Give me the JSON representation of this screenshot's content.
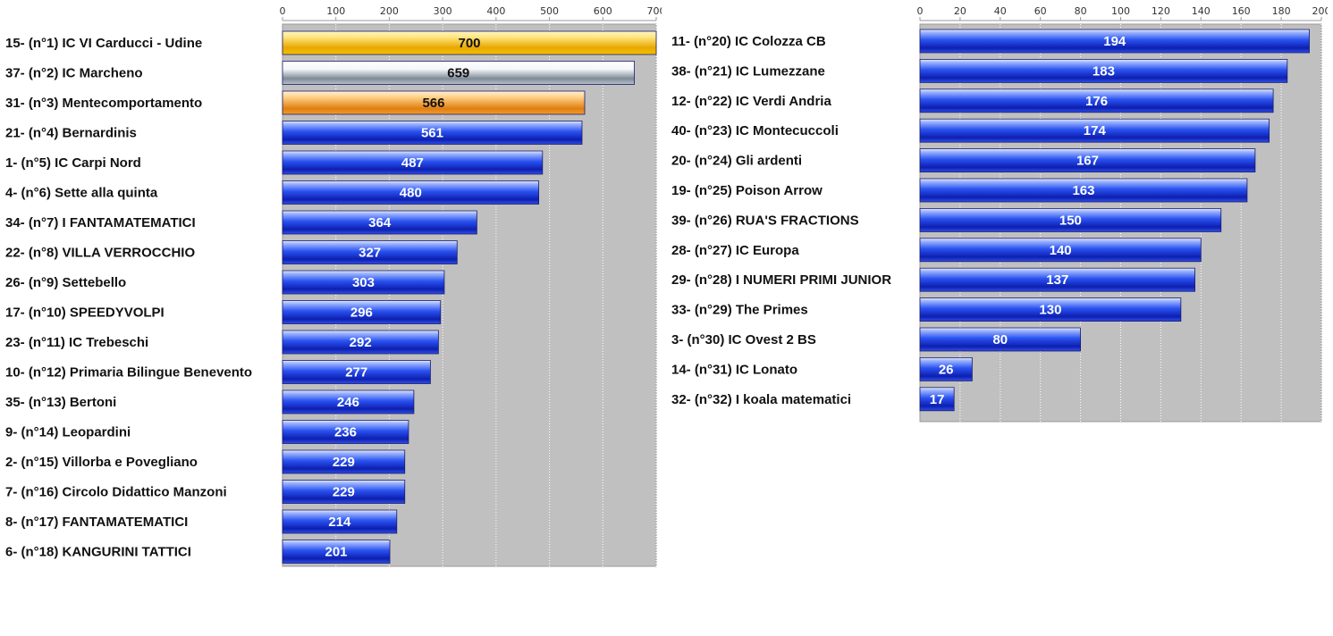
{
  "colors": {
    "plot_bg": "#c0c0c0",
    "gridline": "#ffffff",
    "bar_blue_light": "#9fb6ff",
    "bar_blue_mid": "#2a52f0",
    "bar_blue_dark": "#0d1fb0",
    "gold_light": "#ffe680",
    "gold_dark": "#e8a800",
    "silver_light": "#f4f6f8",
    "silver_dark": "#7d8a96",
    "bronze_light": "#ffd38a",
    "bronze_dark": "#e07f10",
    "value_label_white": "#ffffff",
    "value_label_dark": "#111111"
  },
  "chart_data": [
    {
      "type": "bar",
      "orientation": "horizontal",
      "xlim": [
        0,
        700
      ],
      "ticks": [
        "0",
        "100",
        "200",
        "300",
        "400",
        "500",
        "600",
        "700"
      ],
      "tick_values": [
        0,
        100,
        200,
        300,
        400,
        500,
        600,
        700
      ],
      "grid": true,
      "categories": [
        "15- (n°1) IC VI Carducci - Udine",
        "37- (n°2) IC Marcheno",
        "31- (n°3) Mentecomportamento",
        "21- (n°4) Bernardinis",
        "1- (n°5) IC Carpi Nord",
        "4- (n°6) Sette alla quinta",
        "34- (n°7) I FANTAMATEMATICI",
        "22- (n°8) VILLA VERROCCHIO",
        "26- (n°9) Settebello",
        "17- (n°10) SPEEDYVOLPI",
        "23- (n°11) IC Trebeschi",
        "10- (n°12) Primaria Bilingue Benevento",
        "35- (n°13) Bertoni",
        "9- (n°14) Leopardini",
        "2- (n°15) Villorba e Povegliano",
        "7- (n°16) Circolo Didattico Manzoni",
        "8- (n°17) FANTAMATEMATICI",
        "6- (n°18) KANGURINI TATTICI"
      ],
      "values": [
        700,
        659,
        566,
        561,
        487,
        480,
        364,
        327,
        303,
        296,
        292,
        277,
        246,
        236,
        229,
        229,
        214,
        201
      ],
      "value_labels": [
        "700",
        "659",
        "566",
        "561",
        "487",
        "480",
        "364",
        "327",
        "303",
        "296",
        "292",
        "277",
        "246",
        "236",
        "229",
        "229",
        "214",
        "201"
      ],
      "bar_styles": [
        "gold",
        "silver",
        "bronze",
        "blue",
        "blue",
        "blue",
        "blue",
        "blue",
        "blue",
        "blue",
        "blue",
        "blue",
        "blue",
        "blue",
        "blue",
        "blue",
        "blue",
        "blue"
      ]
    },
    {
      "type": "bar",
      "orientation": "horizontal",
      "xlim": [
        0,
        200
      ],
      "ticks": [
        "0",
        "20",
        "40",
        "60",
        "80",
        "100",
        "120",
        "140",
        "160",
        "180",
        "200"
      ],
      "tick_values": [
        0,
        20,
        40,
        60,
        80,
        100,
        120,
        140,
        160,
        180,
        200
      ],
      "grid": true,
      "categories": [
        "11- (n°20) IC Colozza CB",
        "38- (n°21) IC Lumezzane",
        "12- (n°22) IC Verdi Andria",
        "40- (n°23) IC Montecuccoli",
        "20- (n°24) Gli ardenti",
        "19- (n°25) Poison Arrow",
        "39- (n°26) RUA'S FRACTIONS",
        "28- (n°27) IC Europa",
        "29- (n°28) I NUMERI PRIMI JUNIOR",
        "33- (n°29) The Primes",
        "3- (n°30) IC Ovest 2 BS",
        "14- (n°31) IC Lonato",
        "32- (n°32) I koala matematici"
      ],
      "values": [
        194,
        183,
        176,
        174,
        167,
        163,
        150,
        140,
        137,
        130,
        80,
        26,
        17
      ],
      "value_labels": [
        "194",
        "183",
        "176",
        "174",
        "167",
        "163",
        "150",
        "140",
        "137",
        "130",
        "80",
        "26",
        "17"
      ],
      "bar_styles": [
        "blue",
        "blue",
        "blue",
        "blue",
        "blue",
        "blue",
        "blue",
        "blue",
        "blue",
        "blue",
        "blue",
        "blue",
        "blue"
      ]
    }
  ]
}
